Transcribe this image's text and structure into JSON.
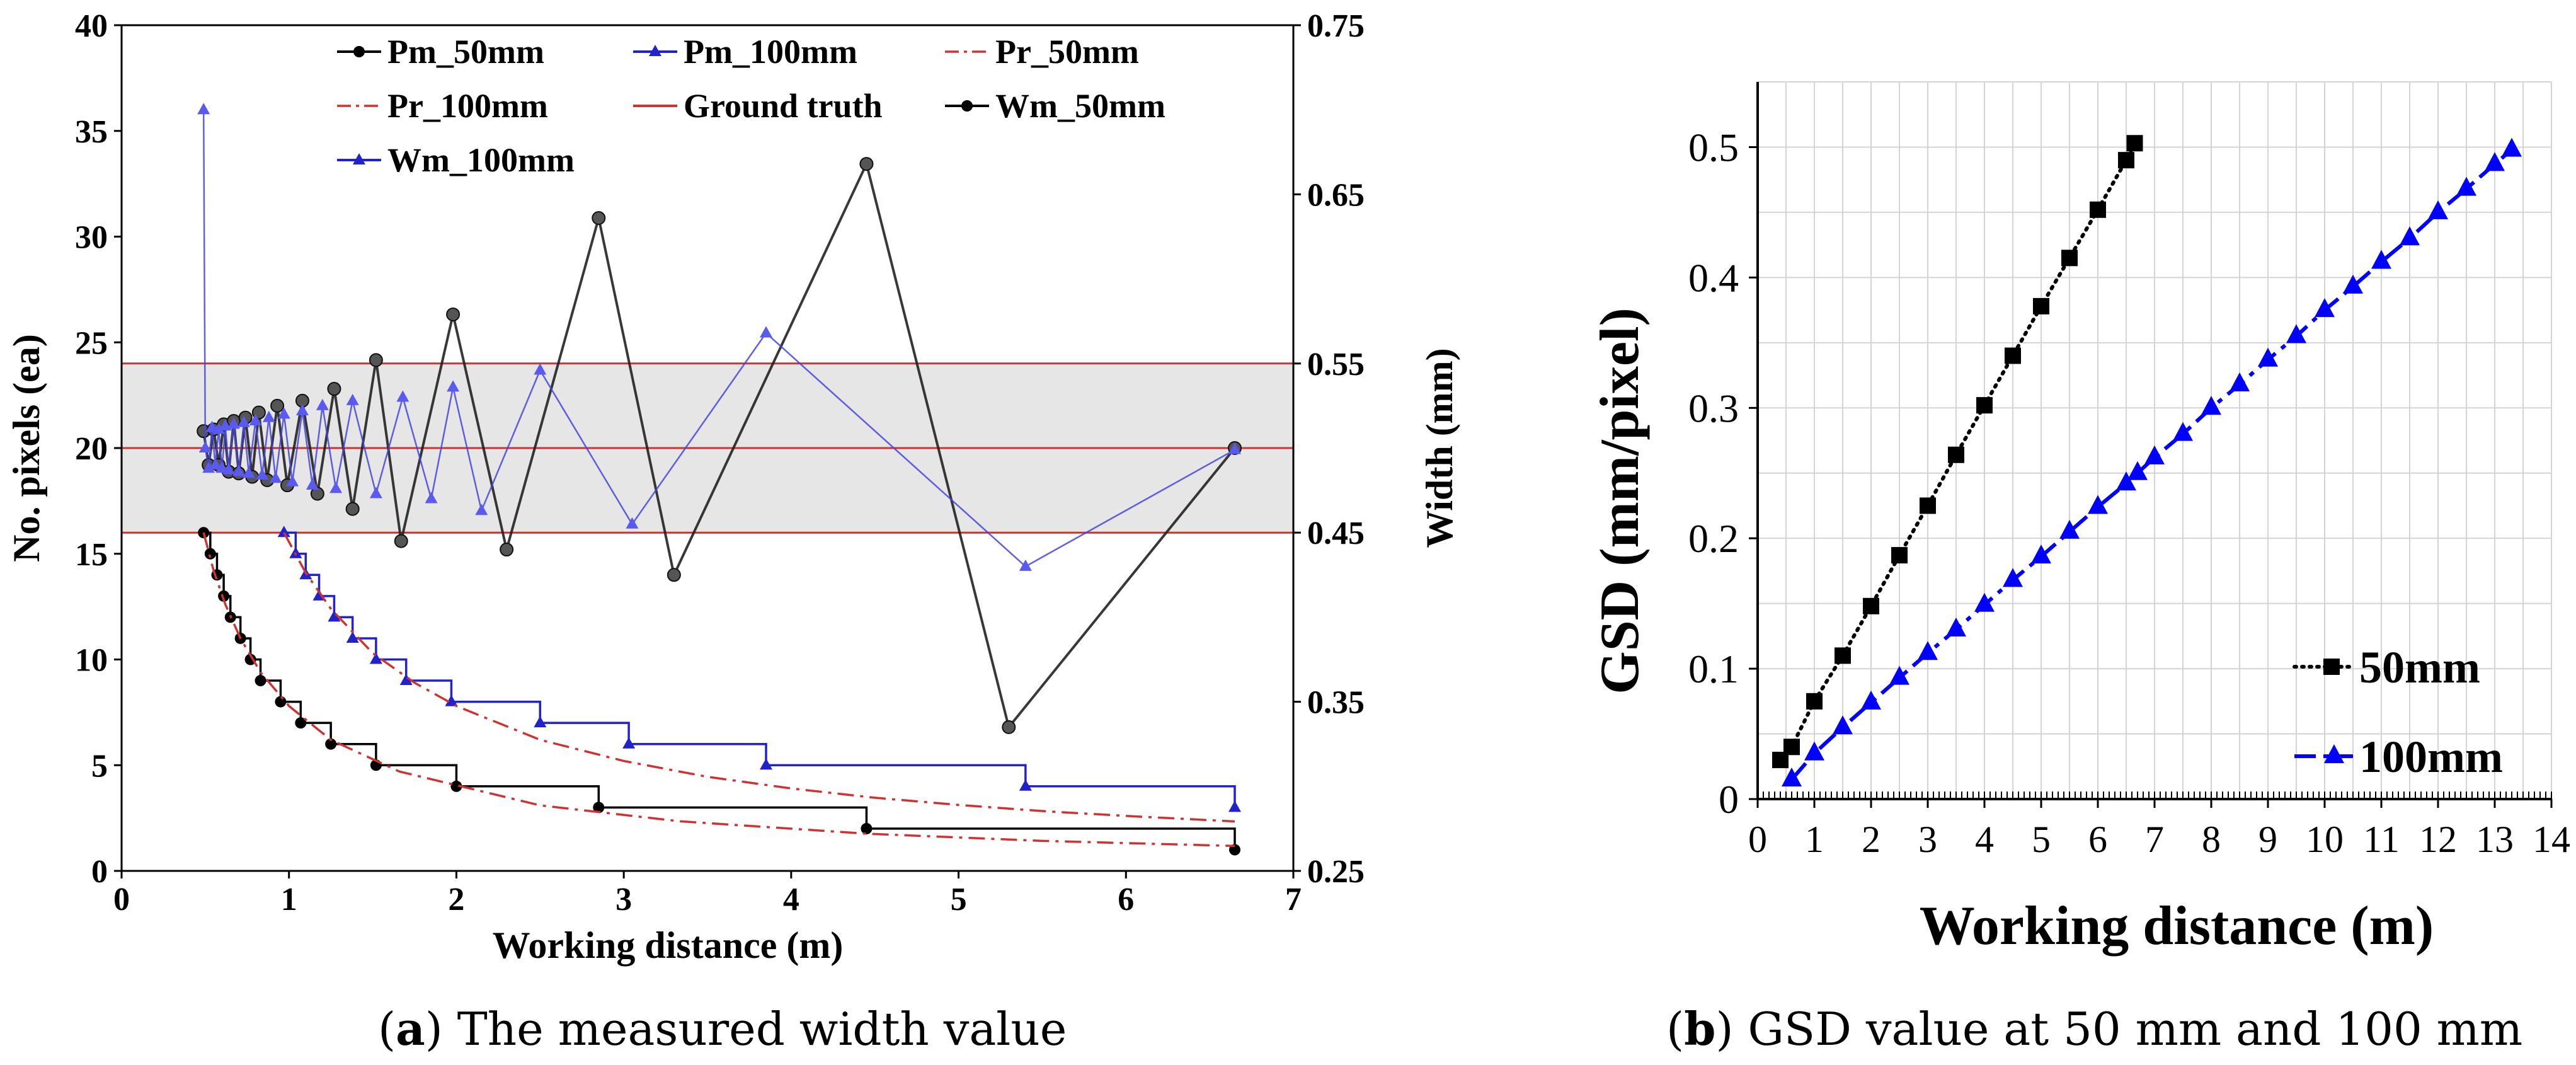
{
  "captions": {
    "a_letter": "a",
    "a_text": " The measured width value",
    "b_letter": "b",
    "b_text": " GSD value at 50 mm and 100 mm"
  },
  "colors": {
    "black": "#000000",
    "blue": "#2222cc",
    "red": "#cc3333",
    "band": "#e6e6e6",
    "grid": "#d4d4d4",
    "pureblue": "#0000ff"
  },
  "chart_data": [
    {
      "id": "a",
      "type": "line",
      "xlabel": "Working distance (m)",
      "ylabel": "No. pixels (ea)",
      "y2label": "Width (mm)",
      "xlim": [
        0,
        7
      ],
      "ylim": [
        0,
        40
      ],
      "y2lim": [
        0.25,
        0.75
      ],
      "xticks": [
        "0",
        "1",
        "2",
        "3",
        "4",
        "5",
        "6",
        "7"
      ],
      "yticks": [
        "0",
        "5",
        "10",
        "15",
        "20",
        "25",
        "30",
        "35",
        "40"
      ],
      "y2ticks": [
        "0.25",
        "0.35",
        "0.45",
        "0.55",
        "0.65",
        "0.75"
      ],
      "ground_truth": 0.5,
      "band": [
        0.45,
        0.55
      ],
      "legend": [
        "Pm_50mm",
        "Pm_100mm",
        "Pr_50mm",
        "Pr_100mm",
        "Ground truth",
        "Wm_50mm",
        "Wm_100mm"
      ],
      "series": [
        {
          "name": "Pm_50mm",
          "axis": "left",
          "style": "step-black",
          "x": [
            0.49,
            0.53,
            0.57,
            0.61,
            0.65,
            0.71,
            0.77,
            0.83,
            0.95,
            1.07,
            1.25,
            1.52,
            2.0,
            2.85,
            4.45,
            6.65
          ],
          "y": [
            16,
            15,
            14,
            13,
            12,
            11,
            10,
            9,
            8,
            7,
            6,
            5,
            4,
            3,
            2,
            1
          ]
        },
        {
          "name": "Pm_100mm",
          "axis": "left",
          "style": "step-blue",
          "x": [
            0.97,
            1.04,
            1.1,
            1.18,
            1.27,
            1.38,
            1.52,
            1.7,
            1.97,
            2.5,
            3.03,
            3.85,
            5.4,
            6.65
          ],
          "y": [
            16,
            15,
            14,
            13,
            12,
            11,
            10,
            9,
            8,
            7,
            6,
            5,
            4,
            3
          ]
        },
        {
          "name": "Pr_50mm",
          "axis": "left",
          "style": "dashdot-red",
          "x": [
            0.49,
            0.55,
            0.62,
            0.71,
            0.83,
            1.0,
            1.25,
            1.66,
            2.5,
            3.33,
            4.45,
            5.5,
            6.65
          ],
          "y": [
            16,
            14.2,
            12.6,
            11,
            9.4,
            7.8,
            6.2,
            4.7,
            3.1,
            2.35,
            1.76,
            1.42,
            1.18
          ]
        },
        {
          "name": "Pr_100mm",
          "axis": "left",
          "style": "dashdot-red",
          "x": [
            0.97,
            1.1,
            1.25,
            1.5,
            1.75,
            2.0,
            2.5,
            3.0,
            3.5,
            4.0,
            4.5,
            5.0,
            5.5,
            6.0,
            6.65
          ],
          "y": [
            16,
            14.1,
            12.4,
            10.3,
            8.9,
            7.8,
            6.2,
            5.2,
            4.45,
            3.9,
            3.46,
            3.12,
            2.83,
            2.6,
            2.34
          ]
        },
        {
          "name": "Wm_50mm",
          "axis": "right",
          "style": "zigzag-black",
          "x": [
            0.49,
            0.52,
            0.55,
            0.58,
            0.61,
            0.64,
            0.67,
            0.7,
            0.74,
            0.78,
            0.82,
            0.87,
            0.93,
            0.99,
            1.08,
            1.17,
            1.27,
            1.38,
            1.52,
            1.67,
            1.98,
            2.3,
            2.85,
            3.3,
            4.45,
            5.3,
            6.65
          ],
          "y": [
            0.51,
            0.49,
            0.511,
            0.49,
            0.514,
            0.486,
            0.516,
            0.485,
            0.518,
            0.483,
            0.521,
            0.481,
            0.525,
            0.478,
            0.528,
            0.473,
            0.535,
            0.464,
            0.552,
            0.445,
            0.579,
            0.44,
            0.636,
            0.425,
            0.668,
            0.335,
            0.5
          ]
        },
        {
          "name": "Wm_100mm",
          "axis": "right",
          "style": "zigzag-blue",
          "x": [
            0.49,
            0.5,
            0.52,
            0.54,
            0.56,
            0.58,
            0.6,
            0.62,
            0.64,
            0.67,
            0.7,
            0.73,
            0.76,
            0.8,
            0.84,
            0.88,
            0.92,
            0.97,
            1.02,
            1.08,
            1.14,
            1.2,
            1.28,
            1.38,
            1.52,
            1.68,
            1.85,
            1.98,
            2.15,
            2.5,
            3.05,
            3.85,
            5.4,
            6.65
          ],
          "y": [
            0.7,
            0.5,
            0.488,
            0.512,
            0.49,
            0.511,
            0.488,
            0.513,
            0.487,
            0.514,
            0.486,
            0.515,
            0.485,
            0.516,
            0.484,
            0.518,
            0.482,
            0.52,
            0.48,
            0.522,
            0.478,
            0.525,
            0.476,
            0.528,
            0.473,
            0.53,
            0.47,
            0.536,
            0.463,
            0.546,
            0.455,
            0.568,
            0.43,
            0.499
          ]
        }
      ]
    },
    {
      "id": "b",
      "type": "scatter",
      "xlabel": "Working distance (m)",
      "ylabel": "GSD (mm/pixel)",
      "xlim": [
        0,
        14
      ],
      "ylim": [
        0,
        0.55
      ],
      "xticks": [
        "0",
        "1",
        "2",
        "3",
        "4",
        "5",
        "6",
        "7",
        "8",
        "9",
        "10",
        "11",
        "12",
        "13",
        "14"
      ],
      "yticks": [
        "0",
        "0.1",
        "0.2",
        "0.3",
        "0.4",
        "0.5"
      ],
      "legend": [
        "50mm",
        "100mm"
      ],
      "series": [
        {
          "name": "50mm",
          "marker": "square",
          "color": "#000000",
          "x": [
            0.4,
            0.6,
            1,
            1.5,
            2,
            2.5,
            3,
            3.5,
            4,
            4.5,
            5,
            5.5,
            6,
            6.5,
            6.65
          ],
          "y": [
            0.03,
            0.04,
            0.075,
            0.11,
            0.148,
            0.187,
            0.225,
            0.264,
            0.302,
            0.34,
            0.378,
            0.415,
            0.452,
            0.49,
            0.503
          ]
        },
        {
          "name": "100mm",
          "marker": "triangle",
          "color": "#0000ff",
          "x": [
            0.6,
            1,
            1.5,
            2,
            2.5,
            3,
            3.5,
            4,
            4.5,
            5,
            5.5,
            6,
            6.5,
            6.7,
            7,
            7.5,
            8,
            8.5,
            9,
            9.5,
            10,
            10.5,
            11,
            11.5,
            12,
            12.5,
            13,
            13.3
          ],
          "y": [
            0.015,
            0.035,
            0.055,
            0.074,
            0.093,
            0.112,
            0.13,
            0.149,
            0.168,
            0.186,
            0.205,
            0.224,
            0.242,
            0.25,
            0.262,
            0.28,
            0.3,
            0.318,
            0.337,
            0.355,
            0.375,
            0.393,
            0.412,
            0.43,
            0.45,
            0.468,
            0.487,
            0.498
          ]
        }
      ]
    }
  ]
}
